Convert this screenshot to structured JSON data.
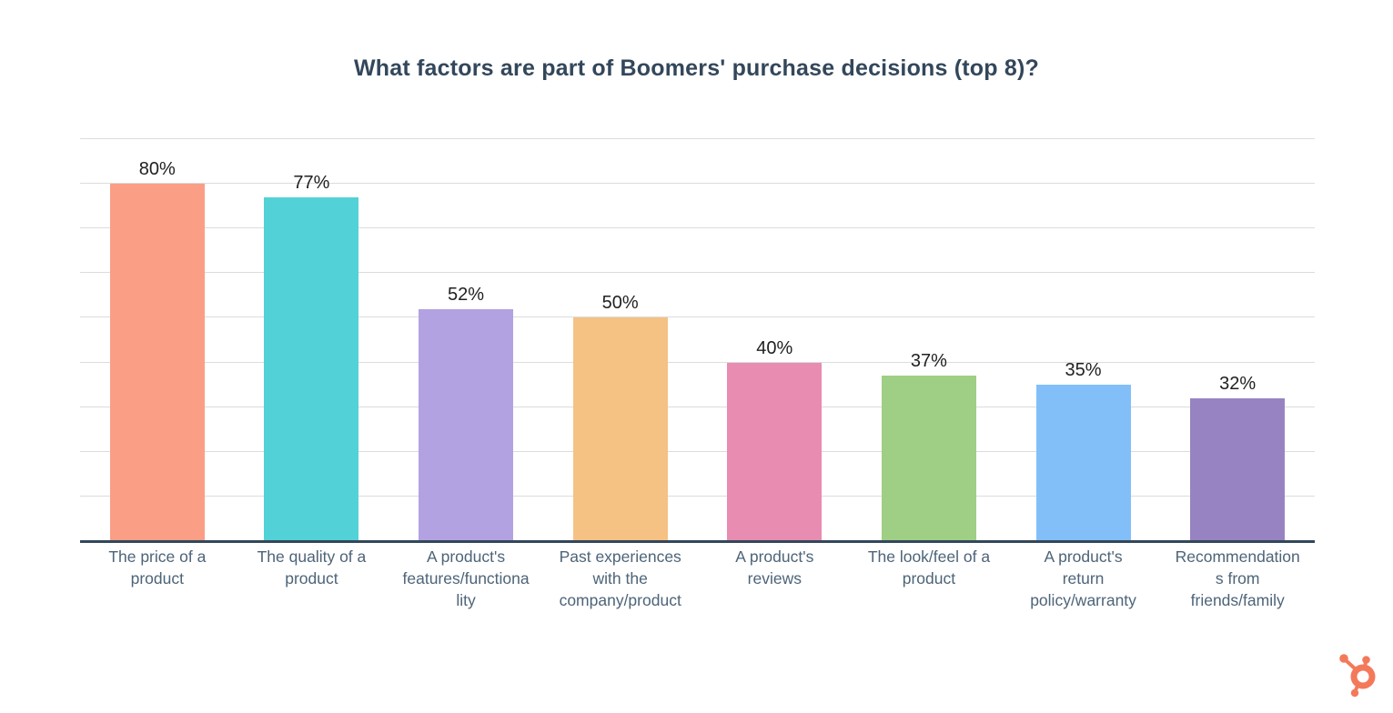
{
  "title": {
    "text": "What factors are part of Boomers' purchase decisions (top 8)?",
    "color": "#33475b"
  },
  "chart_data": {
    "type": "bar",
    "title": "What factors are part of Boomers' purchase decisions (top 8)?",
    "categories": [
      "The price of a product",
      "The quality of a product",
      "A product's features/functionality",
      "Past experiences with the company/product",
      "A product's reviews",
      "The look/feel of a product",
      "A product's return policy/warranty",
      "Recommendations from friends/family"
    ],
    "category_display": [
      "The price of a\nproduct",
      "The quality of a\nproduct",
      "A product's\nfeatures/functiona\nlity",
      "Past experiences\nwith the\ncompany/product",
      "A product's\nreviews",
      "The look/feel of a\nproduct",
      "A product's\nreturn\npolicy/warranty",
      "Recommendation\ns from\nfriends/family"
    ],
    "values": [
      80,
      77,
      52,
      50,
      40,
      37,
      35,
      32
    ],
    "value_labels": [
      "80%",
      "77%",
      "52%",
      "50%",
      "40%",
      "37%",
      "35%",
      "32%"
    ],
    "bar_colors": [
      "#fb9e86",
      "#52d2d6",
      "#b3a2e1",
      "#f5c284",
      "#e88cb1",
      "#9ecf85",
      "#82bff9",
      "#9783c2"
    ],
    "xlabel": "",
    "ylabel": "",
    "ylim": [
      0,
      90
    ],
    "grid": true,
    "gridline_step": 10,
    "legend_position": "none"
  },
  "branding": {
    "logo_name": "hubspot-sprocket",
    "logo_color": "#f4795b"
  },
  "style_colors": {
    "background": "#ffffff",
    "gridline": "#dcdcdc",
    "axis_line": "#33475b",
    "value_label": "#212121",
    "category_label": "#4d6478"
  }
}
